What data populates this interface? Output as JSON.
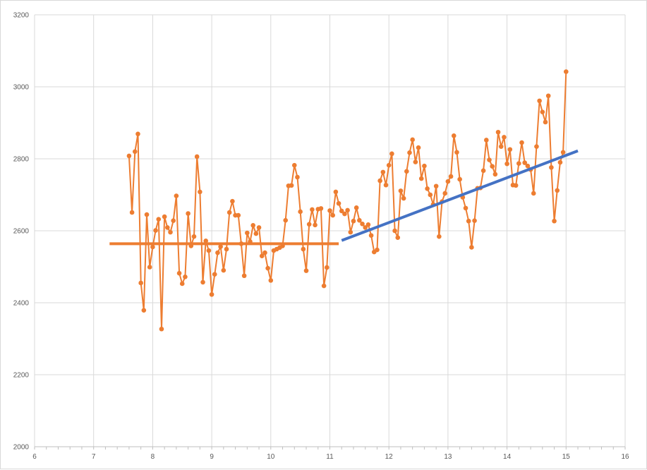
{
  "chart_data": {
    "type": "scatter",
    "title": "",
    "xlabel": "",
    "ylabel": "",
    "xlim": [
      6,
      16
    ],
    "ylim": [
      2000,
      3200
    ],
    "x_ticks": [
      6,
      7,
      8,
      9,
      10,
      11,
      12,
      13,
      14,
      15,
      16
    ],
    "y_ticks": [
      2000,
      2200,
      2400,
      2600,
      2800,
      3000,
      3200
    ],
    "grid": true,
    "legend": "none",
    "colors": {
      "series": "#ED7D31",
      "trend_flat": "#ED7D31",
      "trend_rising": "#4472C4",
      "grid": "#d9d9d9",
      "tick_text": "#595959"
    },
    "series": [
      {
        "color": "#ED7D31",
        "points": [
          [
            7.6,
            2808
          ],
          [
            7.65,
            2651
          ],
          [
            7.7,
            2820
          ],
          [
            7.75,
            2869
          ],
          [
            7.8,
            2455
          ],
          [
            7.85,
            2379
          ],
          [
            7.9,
            2645
          ],
          [
            7.95,
            2499
          ],
          [
            8.0,
            2555
          ],
          [
            8.05,
            2601
          ],
          [
            8.1,
            2632
          ],
          [
            8.15,
            2327
          ],
          [
            8.2,
            2639
          ],
          [
            8.25,
            2609
          ],
          [
            8.3,
            2596
          ],
          [
            8.35,
            2628
          ],
          [
            8.4,
            2697
          ],
          [
            8.45,
            2482
          ],
          [
            8.5,
            2453
          ],
          [
            8.55,
            2472
          ],
          [
            8.6,
            2648
          ],
          [
            8.65,
            2558
          ],
          [
            8.7,
            2584
          ],
          [
            8.75,
            2806
          ],
          [
            8.8,
            2708
          ],
          [
            8.85,
            2457
          ],
          [
            8.9,
            2572
          ],
          [
            8.95,
            2545
          ],
          [
            9.0,
            2423
          ],
          [
            9.05,
            2479
          ],
          [
            9.1,
            2539
          ],
          [
            9.15,
            2556
          ],
          [
            9.2,
            2490
          ],
          [
            9.25,
            2549
          ],
          [
            9.3,
            2651
          ],
          [
            9.35,
            2682
          ],
          [
            9.4,
            2643
          ],
          [
            9.45,
            2643
          ],
          [
            9.5,
            2564
          ],
          [
            9.55,
            2475
          ],
          [
            9.6,
            2594
          ],
          [
            9.65,
            2570
          ],
          [
            9.7,
            2615
          ],
          [
            9.75,
            2592
          ],
          [
            9.8,
            2609
          ],
          [
            9.85,
            2530
          ],
          [
            9.9,
            2539
          ],
          [
            9.95,
            2496
          ],
          [
            10.0,
            2462
          ],
          [
            10.05,
            2545
          ],
          [
            10.1,
            2549
          ],
          [
            10.15,
            2553
          ],
          [
            10.2,
            2558
          ],
          [
            10.25,
            2629
          ],
          [
            10.3,
            2725
          ],
          [
            10.35,
            2726
          ],
          [
            10.4,
            2782
          ],
          [
            10.45,
            2749
          ],
          [
            10.5,
            2653
          ],
          [
            10.55,
            2549
          ],
          [
            10.6,
            2489
          ],
          [
            10.65,
            2618
          ],
          [
            10.7,
            2659
          ],
          [
            10.75,
            2616
          ],
          [
            10.8,
            2660
          ],
          [
            10.85,
            2662
          ],
          [
            10.9,
            2447
          ],
          [
            10.95,
            2498
          ],
          [
            11.0,
            2656
          ],
          [
            11.05,
            2643
          ],
          [
            11.1,
            2708
          ],
          [
            11.15,
            2676
          ],
          [
            11.2,
            2655
          ],
          [
            11.25,
            2647
          ],
          [
            11.3,
            2657
          ],
          [
            11.35,
            2596
          ],
          [
            11.4,
            2627
          ],
          [
            11.45,
            2664
          ],
          [
            11.5,
            2629
          ],
          [
            11.55,
            2619
          ],
          [
            11.6,
            2609
          ],
          [
            11.65,
            2617
          ],
          [
            11.7,
            2587
          ],
          [
            11.75,
            2541
          ],
          [
            11.8,
            2547
          ],
          [
            11.85,
            2739
          ],
          [
            11.9,
            2763
          ],
          [
            11.95,
            2727
          ],
          [
            12.0,
            2782
          ],
          [
            12.05,
            2814
          ],
          [
            12.1,
            2600
          ],
          [
            12.15,
            2581
          ],
          [
            12.2,
            2711
          ],
          [
            12.25,
            2690
          ],
          [
            12.3,
            2765
          ],
          [
            12.35,
            2817
          ],
          [
            12.4,
            2853
          ],
          [
            12.45,
            2791
          ],
          [
            12.5,
            2831
          ],
          [
            12.55,
            2745
          ],
          [
            12.6,
            2780
          ],
          [
            12.65,
            2717
          ],
          [
            12.7,
            2700
          ],
          [
            12.75,
            2673
          ],
          [
            12.8,
            2724
          ],
          [
            12.85,
            2584
          ],
          [
            12.9,
            2681
          ],
          [
            12.95,
            2704
          ],
          [
            13.0,
            2737
          ],
          [
            13.05,
            2751
          ],
          [
            13.1,
            2864
          ],
          [
            13.15,
            2818
          ],
          [
            13.2,
            2743
          ],
          [
            13.25,
            2693
          ],
          [
            13.3,
            2663
          ],
          [
            13.35,
            2627
          ],
          [
            13.4,
            2554
          ],
          [
            13.45,
            2628
          ],
          [
            13.5,
            2718
          ],
          [
            13.55,
            2719
          ],
          [
            13.6,
            2767
          ],
          [
            13.65,
            2852
          ],
          [
            13.7,
            2797
          ],
          [
            13.75,
            2779
          ],
          [
            13.8,
            2757
          ],
          [
            13.85,
            2874
          ],
          [
            13.9,
            2834
          ],
          [
            13.95,
            2860
          ],
          [
            14.0,
            2786
          ],
          [
            14.05,
            2826
          ],
          [
            14.1,
            2727
          ],
          [
            14.15,
            2726
          ],
          [
            14.2,
            2787
          ],
          [
            14.25,
            2845
          ],
          [
            14.3,
            2789
          ],
          [
            14.35,
            2780
          ],
          [
            14.4,
            2770
          ],
          [
            14.45,
            2704
          ],
          [
            14.5,
            2834
          ],
          [
            14.55,
            2961
          ],
          [
            14.6,
            2930
          ],
          [
            14.65,
            2902
          ],
          [
            14.7,
            2975
          ],
          [
            14.75,
            2776
          ],
          [
            14.8,
            2627
          ],
          [
            14.85,
            2712
          ],
          [
            14.9,
            2790
          ],
          [
            14.95,
            2818
          ],
          [
            15.0,
            3042
          ]
        ]
      }
    ],
    "trend_lines": [
      {
        "color": "#ED7D31",
        "from": [
          7.27,
          2564
        ],
        "to": [
          11.15,
          2564
        ]
      },
      {
        "color": "#4472C4",
        "from": [
          11.2,
          2573
        ],
        "to": [
          15.2,
          2822
        ]
      }
    ]
  }
}
